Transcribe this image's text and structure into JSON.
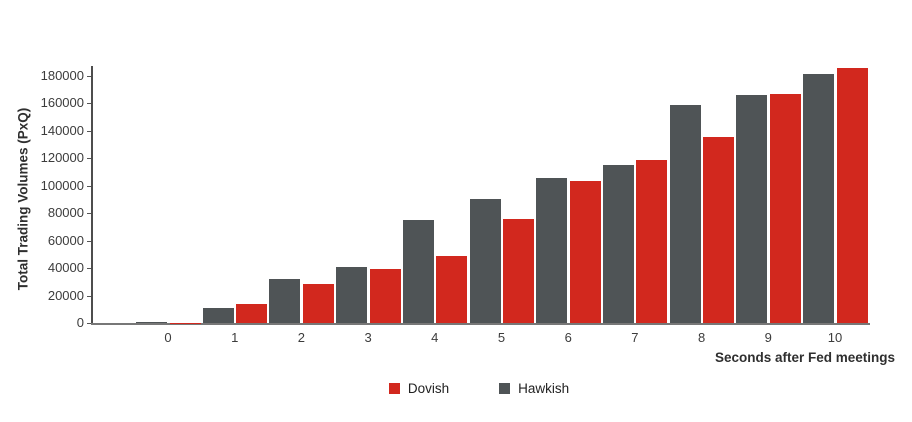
{
  "chart_data": {
    "type": "bar",
    "title": "",
    "xlabel": "Seconds after Fed meetings",
    "ylabel": "Total Trading Volumes (PxQ)",
    "categories": [
      "0",
      "1",
      "2",
      "3",
      "4",
      "5",
      "6",
      "7",
      "8",
      "9",
      "10"
    ],
    "series": [
      {
        "name": "Dovish",
        "color": "#d2281e",
        "values": [
          200,
          13500,
          28500,
          39000,
          49000,
          76000,
          103500,
          118500,
          135500,
          166500,
          186000
        ]
      },
      {
        "name": "Hawkish",
        "color": "#4f5456",
        "values": [
          1000,
          11000,
          32000,
          40500,
          75000,
          90000,
          105500,
          115000,
          159000,
          166000,
          181000
        ]
      }
    ],
    "group_order": [
      "Hawkish",
      "Dovish"
    ],
    "ylim": [
      0,
      190000
    ],
    "yticks": [
      0,
      20000,
      40000,
      60000,
      80000,
      100000,
      120000,
      140000,
      160000,
      180000
    ],
    "grid": false,
    "legend_position": "bottom"
  },
  "colors": {
    "dovish": "#d2281e",
    "hawkish": "#4f5456",
    "axis_line": "#777777",
    "tick_text": "#3c3c3c",
    "background": "#ffffff"
  }
}
